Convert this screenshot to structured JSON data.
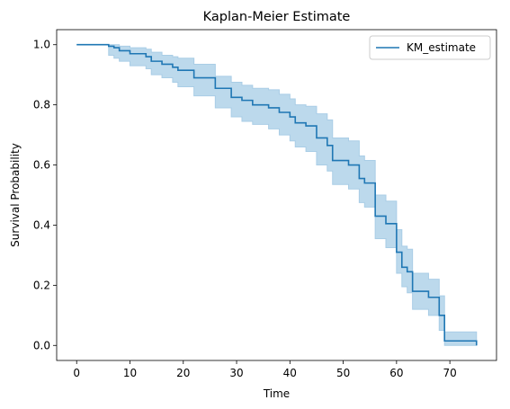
{
  "chart_data": {
    "type": "line",
    "title": "Kaplan-Meier Estimate",
    "xlabel": "Time",
    "ylabel": "Survival Probability",
    "xlim": [
      -3.75,
      78.75
    ],
    "ylim": [
      -0.05,
      1.05
    ],
    "xticks": [
      0,
      10,
      20,
      30,
      40,
      50,
      60,
      70
    ],
    "yticks": [
      0.0,
      0.2,
      0.4,
      0.6,
      0.8,
      1.0
    ],
    "ytick_labels": [
      "0.0",
      "0.2",
      "0.4",
      "0.6",
      "0.8",
      "1.0"
    ],
    "grid": false,
    "legend": {
      "position": "top-right",
      "entries": [
        "KM_estimate"
      ]
    },
    "series": [
      {
        "name": "KM_estimate",
        "color": "#1f77b4",
        "band_color": "#bcd9ec",
        "step_times": [
          0,
          6,
          7,
          8,
          10,
          13,
          14,
          16,
          18,
          19,
          22,
          26,
          29,
          31,
          33,
          36,
          38,
          40,
          41,
          43,
          45,
          47,
          48,
          51,
          53,
          54,
          56,
          58,
          60,
          61,
          62,
          63,
          66,
          68,
          69,
          75
        ],
        "survival": [
          1.0,
          0.995,
          0.99,
          0.98,
          0.97,
          0.96,
          0.945,
          0.935,
          0.925,
          0.915,
          0.89,
          0.855,
          0.825,
          0.815,
          0.8,
          0.79,
          0.775,
          0.76,
          0.74,
          0.73,
          0.69,
          0.665,
          0.615,
          0.6,
          0.555,
          0.54,
          0.43,
          0.405,
          0.31,
          0.26,
          0.245,
          0.18,
          0.16,
          0.1,
          0.015,
          0.0
        ],
        "ci_lower": [
          1.0,
          0.965,
          0.955,
          0.945,
          0.93,
          0.92,
          0.9,
          0.89,
          0.875,
          0.86,
          0.83,
          0.79,
          0.76,
          0.745,
          0.735,
          0.72,
          0.7,
          0.68,
          0.66,
          0.645,
          0.6,
          0.58,
          0.535,
          0.52,
          0.475,
          0.46,
          0.355,
          0.325,
          0.24,
          0.195,
          0.175,
          0.12,
          0.1,
          0.05,
          0.0,
          0.0
        ],
        "ci_upper": [
          1.0,
          1.0,
          1.0,
          0.995,
          0.99,
          0.985,
          0.975,
          0.965,
          0.96,
          0.955,
          0.935,
          0.895,
          0.875,
          0.865,
          0.855,
          0.85,
          0.835,
          0.82,
          0.8,
          0.795,
          0.77,
          0.75,
          0.69,
          0.68,
          0.63,
          0.615,
          0.5,
          0.48,
          0.385,
          0.33,
          0.32,
          0.24,
          0.22,
          0.165,
          0.045,
          0.0
        ]
      }
    ]
  }
}
